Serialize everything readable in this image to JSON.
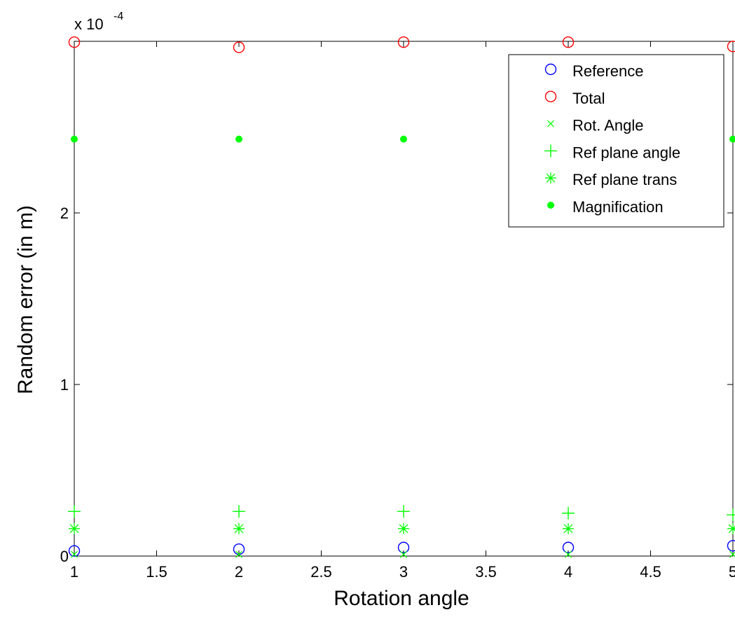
{
  "chart_data": {
    "type": "scatter",
    "title": "",
    "xlabel": "Rotation angle",
    "ylabel": "Random error (in m)",
    "y_exponent_label": "x 10",
    "y_exponent_power": "-4",
    "xlim": [
      1,
      5
    ],
    "ylim": [
      0,
      0.0003
    ],
    "x_ticks": [
      1,
      1.5,
      2,
      2.5,
      3,
      3.5,
      4,
      4.5,
      5
    ],
    "x_tick_labels": [
      "1",
      "1.5",
      "2",
      "2.5",
      "3",
      "3.5",
      "4",
      "4.5",
      "5"
    ],
    "y_ticks": [
      0,
      0.0001,
      0.0002
    ],
    "y_tick_labels": [
      "0",
      "1",
      "2"
    ],
    "grid": false,
    "legend_position": "top-right",
    "x": [
      1,
      2,
      3,
      4,
      5
    ],
    "series": [
      {
        "name": "Reference",
        "marker": "circle",
        "color": "#0000ff",
        "values": [
          3e-06,
          4e-06,
          5e-06,
          5e-06,
          6e-06
        ]
      },
      {
        "name": "Total",
        "marker": "circle",
        "color": "#ff0000",
        "values": [
          0.0002995,
          0.0002965,
          0.0002995,
          0.0002995,
          0.000297
        ]
      },
      {
        "name": "Rot. Angle",
        "marker": "x",
        "color": "#00ff00",
        "values": [
          1e-06,
          1e-06,
          1e-06,
          1e-06,
          1e-06
        ]
      },
      {
        "name": "Ref plane angle",
        "marker": "plus",
        "color": "#00ff00",
        "values": [
          2.6e-05,
          2.6e-05,
          2.6e-05,
          2.5e-05,
          2.4e-05
        ]
      },
      {
        "name": "Ref plane trans",
        "marker": "star",
        "color": "#00ff00",
        "values": [
          1.6e-05,
          1.6e-05,
          1.6e-05,
          1.6e-05,
          1.6e-05
        ]
      },
      {
        "name": "Magnification",
        "marker": "dot",
        "color": "#00ff00",
        "values": [
          0.000243,
          0.000243,
          0.000243,
          0.000243,
          0.000243
        ]
      }
    ]
  }
}
